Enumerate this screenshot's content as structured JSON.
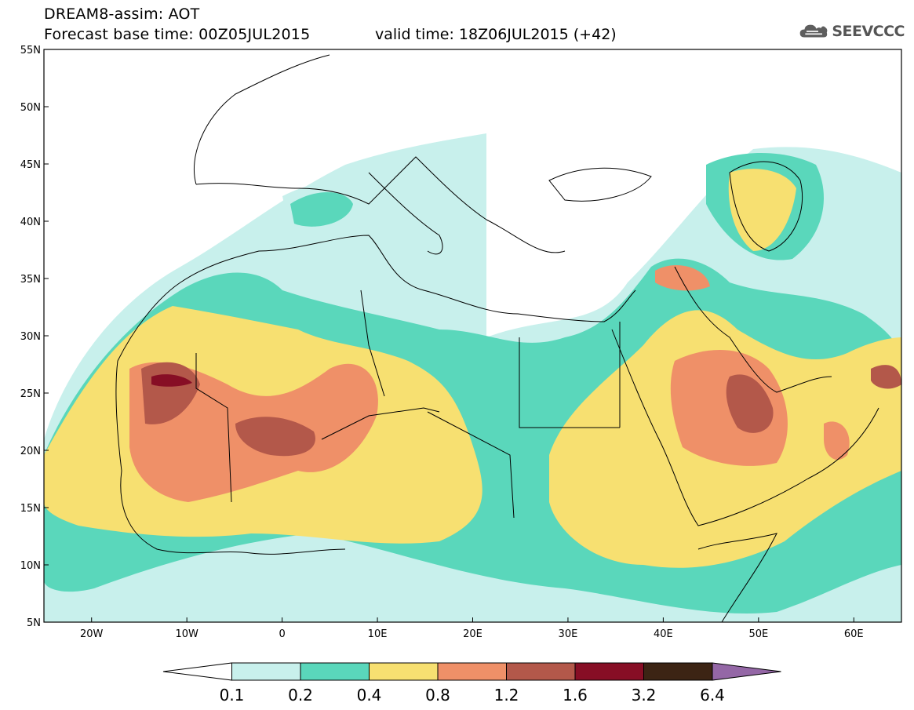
{
  "header": {
    "title_line1": "DREAM8-assim: AOT",
    "title_line2": "Forecast base time: 00Z05JUL2015",
    "valid_time": "valid time: 18Z06JUL2015 (+42)",
    "logo_text": "SEEVCCC",
    "logo_icon": "cloud-icon"
  },
  "map": {
    "lon_range": [
      -25,
      65
    ],
    "lat_range": [
      5,
      55
    ],
    "lat_labels": [
      "55N",
      "50N",
      "45N",
      "40N",
      "35N",
      "30N",
      "25N",
      "20N",
      "15N",
      "10N",
      "5N"
    ],
    "lon_labels": [
      "20W",
      "10W",
      "0",
      "10E",
      "20E",
      "30E",
      "40E",
      "50E",
      "60E"
    ]
  },
  "legend": {
    "labels": [
      "0.1",
      "0.2",
      "0.4",
      "0.8",
      "1.2",
      "1.6",
      "3.2",
      "6.4"
    ],
    "colors": [
      "#ffffff",
      "#c8f0ec",
      "#5ad7bb",
      "#f7e071",
      "#ef9068",
      "#b3584a",
      "#870e25",
      "#3c2414",
      "#9467a6"
    ]
  }
}
